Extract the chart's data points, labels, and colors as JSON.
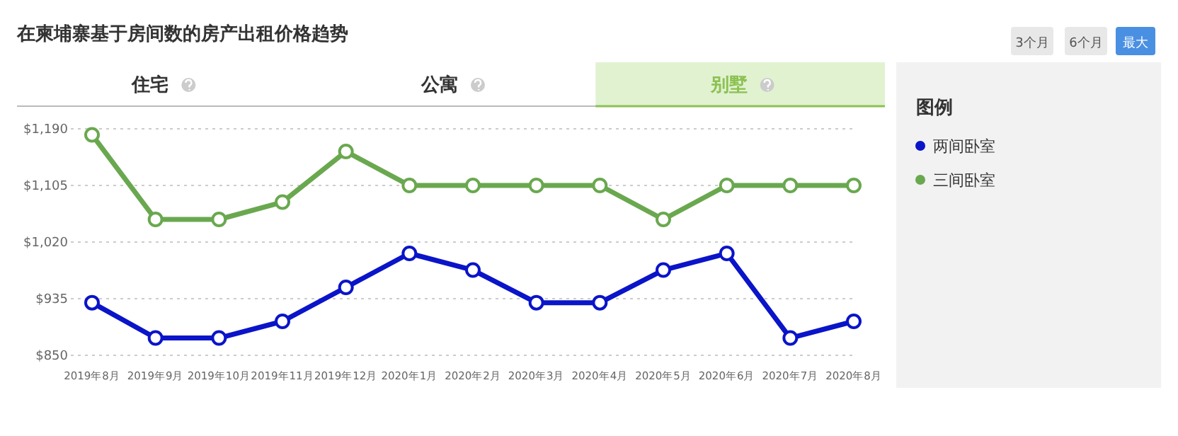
{
  "chart_data": {
    "type": "line",
    "title": "在柬埔寨基于房间数的房产出租价格趋势",
    "annotations": [
      "住宅",
      "公寓",
      "别墅",
      "3个月",
      "6个月",
      "最大"
    ],
    "categories": [
      "2019年8月",
      "2019年9月",
      "2019年10月",
      "2019年11月",
      "2019年12月",
      "2020年1月",
      "2020年2月",
      "2020年3月",
      "2020年4月",
      "2020年5月",
      "2020年6月",
      "2020年7月",
      "2020年8月"
    ],
    "series": [
      {
        "name": "两间卧室",
        "color": "#0a14c8",
        "values": [
          929,
          876,
          876,
          901,
          952,
          1003,
          978,
          929,
          929,
          978,
          1003,
          876,
          901
        ]
      },
      {
        "name": "三间卧室",
        "color": "#6aa84f",
        "values": [
          1181,
          1054,
          1054,
          1080,
          1156,
          1105,
          1105,
          1105,
          1105,
          1054,
          1105,
          1105,
          1105
        ]
      }
    ],
    "ylim": [
      850,
      1190
    ],
    "yticks": [
      {
        "value": 850,
        "label": "$850"
      },
      {
        "value": 935,
        "label": "$935"
      },
      {
        "value": 1020,
        "label": "$1,020"
      },
      {
        "value": 1105,
        "label": "$1,105"
      },
      {
        "value": 1190,
        "label": "$1,190"
      }
    ],
    "grid": "y",
    "legend": "right",
    "legend_title": "图例",
    "marker": "circle",
    "line_style": "solid"
  }
}
